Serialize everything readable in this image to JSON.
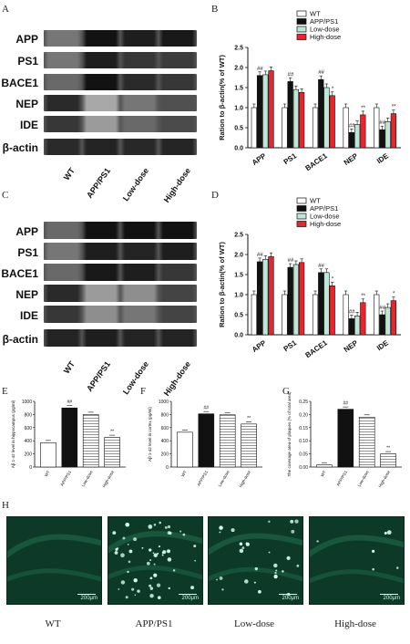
{
  "panel_letters": {
    "a": "A",
    "b": "B",
    "c": "C",
    "d": "D",
    "e": "E",
    "f": "F",
    "g": "G",
    "h": "H"
  },
  "blot_A": {
    "bands": [
      "APP",
      "PS1",
      "BACE1",
      "NEP",
      "IDE",
      "β-actin"
    ],
    "lanes": [
      "WT",
      "APP/PS1",
      "Low-dose",
      "High-dose"
    ]
  },
  "blot_C": {
    "bands": [
      "APP",
      "PS1",
      "BACE1",
      "NEP",
      "IDE",
      "β-actin"
    ],
    "lanes": [
      "WT",
      "APP/PS1",
      "Low-dose",
      "High-dose"
    ]
  },
  "colors": {
    "wt": "#ffffff",
    "app": "#111111",
    "low": "#bfe6d6",
    "high": "#e8252f"
  },
  "scale_text": "200μm",
  "micro_captions": [
    "WT",
    "APP/PS1",
    "Low-dose",
    "High-dose"
  ],
  "chart_data": [
    {
      "id": "B",
      "type": "bar",
      "ylabel": "Ration to β-actin(% of WT)",
      "ylim": [
        0,
        2.5
      ],
      "yticks": [
        "0.0",
        "0.5",
        "1.0",
        "1.5",
        "2.0",
        "2.5"
      ],
      "categories": [
        "APP",
        "PS1",
        "BACE1",
        "NEP",
        "IDE"
      ],
      "series": [
        {
          "name": "WT",
          "values": [
            1.0,
            1.0,
            1.0,
            1.0,
            1.0
          ]
        },
        {
          "name": "APP/PS1",
          "values": [
            1.8,
            1.65,
            1.7,
            0.38,
            0.45
          ]
        },
        {
          "name": "Low-dose",
          "values": [
            1.82,
            1.45,
            1.5,
            0.58,
            0.65
          ]
        },
        {
          "name": "High-dose",
          "values": [
            1.92,
            1.38,
            1.3,
            0.82,
            0.85
          ]
        }
      ],
      "annotations": [
        [
          "##",
          "",
          "",
          ""
        ],
        [
          "##",
          "",
          "",
          ""
        ],
        [
          "##",
          "",
          "",
          "*"
        ],
        [
          "##",
          "",
          "",
          "**"
        ],
        [
          "##",
          "",
          "",
          "**"
        ]
      ],
      "legend": "top-right"
    },
    {
      "id": "D",
      "type": "bar",
      "ylabel": "Ration to β-actin(% of WT)",
      "ylim": [
        0,
        2.5
      ],
      "yticks": [
        "0.0",
        "0.5",
        "1.0",
        "1.5",
        "2.0",
        "2.5"
      ],
      "categories": [
        "APP",
        "PS1",
        "BACE1",
        "NEP",
        "IDE"
      ],
      "series": [
        {
          "name": "WT",
          "values": [
            1.0,
            1.0,
            1.0,
            1.0,
            1.0
          ]
        },
        {
          "name": "APP/PS1",
          "values": [
            1.82,
            1.68,
            1.55,
            0.4,
            0.5
          ]
        },
        {
          "name": "Low-dose",
          "values": [
            1.88,
            1.75,
            1.55,
            0.47,
            0.68
          ]
        },
        {
          "name": "High-dose",
          "values": [
            1.95,
            1.8,
            1.22,
            0.8,
            0.85
          ]
        }
      ],
      "annotations": [
        [
          "##",
          "",
          "",
          ""
        ],
        [
          "##",
          "",
          "",
          ""
        ],
        [
          "##",
          "",
          "",
          "*"
        ],
        [
          "##",
          "",
          "",
          "**"
        ],
        [
          "##",
          "",
          "",
          "*"
        ]
      ],
      "legend": "top-right"
    },
    {
      "id": "E",
      "type": "bar",
      "ylabel": "Aβ 1-42 level in hippocampus (pg/ml)",
      "ylim": [
        0,
        1000
      ],
      "yticks": [
        "0",
        "200",
        "400",
        "600",
        "800",
        "1000"
      ],
      "categories": [
        "WT",
        "APP/PS1",
        "Low-dose",
        "High-dose"
      ],
      "values": [
        370,
        900,
        800,
        450
      ],
      "annotations": [
        "",
        "##",
        "",
        "**"
      ]
    },
    {
      "id": "F",
      "type": "bar",
      "ylabel": "Aβ 1-42 level in cortex (pg/ml)",
      "ylim": [
        0,
        1000
      ],
      "yticks": [
        "0",
        "200",
        "400",
        "600",
        "800",
        "1000"
      ],
      "categories": [
        "WT",
        "APP/PS1",
        "Low-dose",
        "High-dose"
      ],
      "values": [
        530,
        810,
        795,
        655
      ],
      "annotations": [
        "",
        "##",
        "",
        "**"
      ]
    },
    {
      "id": "G",
      "type": "bar",
      "ylabel": "The coverage area of plaques (% of total area)",
      "ylim": [
        0,
        0.25
      ],
      "yticks": [
        "0.00",
        "0.05",
        "0.10",
        "0.15",
        "0.20",
        "0.25"
      ],
      "categories": [
        "WT",
        "APP/PS1",
        "Low-dose",
        "High-dose"
      ],
      "values": [
        0.008,
        0.22,
        0.19,
        0.05
      ],
      "annotations": [
        "",
        "##",
        "",
        "**"
      ]
    }
  ]
}
